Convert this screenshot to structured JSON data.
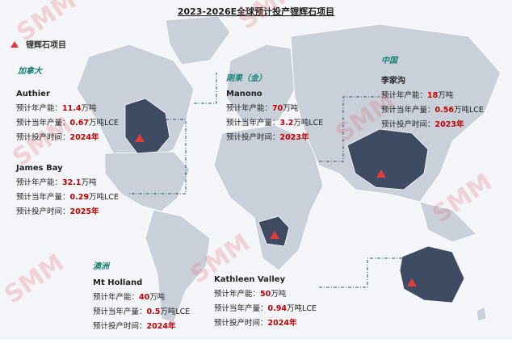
{
  "title": "2023-2026E全球预计投产锂辉石项目",
  "legend": "锂辉石项目",
  "watermark": "SMM",
  "regions": [
    {
      "name": "加拿大",
      "projects": [
        {
          "name": "Authier",
          "lines": [
            {
              "label": "预计年产能：",
              "value": 11.4,
              "unit": "万吨"
            },
            {
              "label": "预计当年产量：",
              "value": 0.67,
              "unit": "万吨LCE"
            },
            {
              "label": "预计投产时间：",
              "value": 2024,
              "unit": "年"
            }
          ]
        },
        {
          "name": "James Bay",
          "lines": [
            {
              "label": "预计年产能：",
              "value": 32.1,
              "unit": "万吨"
            },
            {
              "label": "预计当年产量：",
              "value": 0.29,
              "unit": "万吨LCE"
            },
            {
              "label": "预计投产时间：",
              "value": 2025,
              "unit": "年"
            }
          ]
        }
      ]
    },
    {
      "name": "刚果（金）",
      "projects": [
        {
          "name": "Manono",
          "lines": [
            {
              "label": "预计年产能：",
              "value": 70,
              "unit": "万吨"
            },
            {
              "label": "预计当年产量：",
              "value": 3.2,
              "unit": "万吨LCE"
            },
            {
              "label": "预计投产时间：",
              "value": 2023,
              "unit": "年"
            }
          ]
        }
      ]
    },
    {
      "name": "中国",
      "projects": [
        {
          "name": "李家沟",
          "lines": [
            {
              "label": "预计年产能：",
              "value": 18,
              "unit": "万吨"
            },
            {
              "label": "预计当年产量：",
              "value": 0.56,
              "unit": "万吨LCE"
            },
            {
              "label": "预计投产时间：",
              "value": 2023,
              "unit": "年"
            }
          ]
        }
      ]
    },
    {
      "name": "澳洲",
      "projects": [
        {
          "name": "Mt Holland",
          "lines": [
            {
              "label": "预计年产能：",
              "value": 40,
              "unit": "万吨"
            },
            {
              "label": "预计当年产量：",
              "value": 0.5,
              "unit": "万吨LCE"
            },
            {
              "label": "预计投产时间：",
              "value": 2024,
              "unit": "年"
            }
          ]
        },
        {
          "name": "Kathleen Valley",
          "lines": [
            {
              "label": "预计年产能：",
              "value": 50,
              "unit": "万吨"
            },
            {
              "label": "预计当年产量：",
              "value": 0.94,
              "unit": "万吨LCE"
            },
            {
              "label": "预计投产时间：",
              "value": 2024,
              "unit": "年"
            }
          ]
        }
      ]
    }
  ]
}
